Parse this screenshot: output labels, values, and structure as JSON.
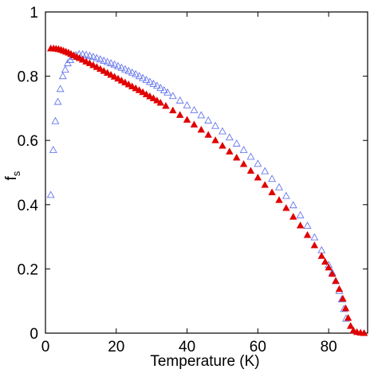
{
  "chart_data": {
    "type": "scatter",
    "xlabel": "Temperature (K)",
    "ylabel": {
      "main": "f",
      "subscript": "s"
    },
    "xlim": [
      0,
      91
    ],
    "ylim": [
      0,
      1
    ],
    "xticks": [
      "0",
      "20",
      "40",
      "60",
      "80"
    ],
    "xtick_values": [
      0,
      20,
      40,
      60,
      80
    ],
    "yticks": [
      "0",
      "0.2",
      "0.4",
      "0.6",
      "0.8",
      "1"
    ],
    "ytick_values": [
      0,
      0.2,
      0.4,
      0.6,
      0.8,
      1
    ],
    "grid": false,
    "series": [
      {
        "marker": "triangle-open",
        "color": "#6677ee",
        "points": [
          [
            1.5,
            0.43
          ],
          [
            2.2,
            0.57
          ],
          [
            2.8,
            0.66
          ],
          [
            3.5,
            0.72
          ],
          [
            4.2,
            0.76
          ],
          [
            4.9,
            0.8
          ],
          [
            5.6,
            0.82
          ],
          [
            6.3,
            0.84
          ],
          [
            7.0,
            0.85
          ],
          [
            7.8,
            0.86
          ],
          [
            8.6,
            0.865
          ],
          [
            9.5,
            0.868
          ],
          [
            10.5,
            0.868
          ],
          [
            11.5,
            0.866
          ],
          [
            12.5,
            0.863
          ],
          [
            13.5,
            0.86
          ],
          [
            14.5,
            0.856
          ],
          [
            15.5,
            0.852
          ],
          [
            16.5,
            0.848
          ],
          [
            17.5,
            0.844
          ],
          [
            18.5,
            0.84
          ],
          [
            19.5,
            0.836
          ],
          [
            20.5,
            0.831
          ],
          [
            21.5,
            0.826
          ],
          [
            22.5,
            0.821
          ],
          [
            23.5,
            0.816
          ],
          [
            24.5,
            0.811
          ],
          [
            25.5,
            0.806
          ],
          [
            26.5,
            0.8
          ],
          [
            27.5,
            0.794
          ],
          [
            28.5,
            0.788
          ],
          [
            29.5,
            0.782
          ],
          [
            30.5,
            0.776
          ],
          [
            31.5,
            0.77
          ],
          [
            32.5,
            0.763
          ],
          [
            33.5,
            0.756
          ],
          [
            34.5,
            0.749
          ],
          [
            36.0,
            0.738
          ],
          [
            38.0,
            0.724
          ],
          [
            40.0,
            0.709
          ],
          [
            42.0,
            0.694
          ],
          [
            44.0,
            0.678
          ],
          [
            46.0,
            0.662
          ],
          [
            48.0,
            0.645
          ],
          [
            50.0,
            0.628
          ],
          [
            52.0,
            0.609
          ],
          [
            54.0,
            0.59
          ],
          [
            56.0,
            0.57
          ],
          [
            58.0,
            0.549
          ],
          [
            60.0,
            0.527
          ],
          [
            62.0,
            0.504
          ],
          [
            64.0,
            0.48
          ],
          [
            66.0,
            0.454
          ],
          [
            68.0,
            0.427
          ],
          [
            70.0,
            0.398
          ],
          [
            72.0,
            0.367
          ],
          [
            74.0,
            0.334
          ],
          [
            76.0,
            0.298
          ],
          [
            78.0,
            0.258
          ],
          [
            80.0,
            0.212
          ],
          [
            81.0,
            0.188
          ],
          [
            82.0,
            0.162
          ],
          [
            83.0,
            0.131
          ],
          [
            83.7,
            0.105
          ],
          [
            84.3,
            0.075
          ],
          [
            84.9,
            0.045
          ]
        ]
      },
      {
        "marker": "triangle-filled",
        "color": "#e00000",
        "points": [
          [
            1.5,
            0.886
          ],
          [
            2.3,
            0.886
          ],
          [
            3.0,
            0.885
          ],
          [
            3.7,
            0.884
          ],
          [
            4.4,
            0.882
          ],
          [
            5.1,
            0.879
          ],
          [
            5.8,
            0.876
          ],
          [
            6.5,
            0.873
          ],
          [
            7.2,
            0.869
          ],
          [
            8.0,
            0.865
          ],
          [
            8.8,
            0.86
          ],
          [
            9.6,
            0.856
          ],
          [
            10.5,
            0.851
          ],
          [
            11.5,
            0.845
          ],
          [
            12.5,
            0.84
          ],
          [
            13.5,
            0.834
          ],
          [
            14.5,
            0.828
          ],
          [
            15.5,
            0.822
          ],
          [
            16.5,
            0.816
          ],
          [
            17.5,
            0.81
          ],
          [
            18.5,
            0.804
          ],
          [
            19.5,
            0.798
          ],
          [
            20.5,
            0.792
          ],
          [
            21.5,
            0.786
          ],
          [
            22.5,
            0.78
          ],
          [
            23.5,
            0.774
          ],
          [
            24.5,
            0.768
          ],
          [
            25.5,
            0.762
          ],
          [
            26.5,
            0.756
          ],
          [
            27.5,
            0.75
          ],
          [
            28.5,
            0.743
          ],
          [
            29.5,
            0.737
          ],
          [
            30.5,
            0.731
          ],
          [
            31.5,
            0.724
          ],
          [
            32.5,
            0.717
          ],
          [
            34.0,
            0.707
          ],
          [
            36.0,
            0.693
          ],
          [
            38.0,
            0.679
          ],
          [
            40.0,
            0.664
          ],
          [
            42.0,
            0.649
          ],
          [
            44.0,
            0.633
          ],
          [
            46.0,
            0.617
          ],
          [
            48.0,
            0.6
          ],
          [
            50.0,
            0.583
          ],
          [
            52.0,
            0.565
          ],
          [
            54.0,
            0.546
          ],
          [
            56.0,
            0.526
          ],
          [
            58.0,
            0.505
          ],
          [
            60.0,
            0.484
          ],
          [
            62.0,
            0.461
          ],
          [
            64.0,
            0.438
          ],
          [
            66.0,
            0.414
          ],
          [
            68.0,
            0.389
          ],
          [
            70.0,
            0.362
          ],
          [
            72.0,
            0.335
          ],
          [
            74.0,
            0.305
          ],
          [
            76.0,
            0.273
          ],
          [
            78.0,
            0.24
          ],
          [
            79.0,
            0.222
          ],
          [
            80.0,
            0.204
          ],
          [
            81.0,
            0.184
          ],
          [
            82.0,
            0.162
          ],
          [
            83.0,
            0.137
          ],
          [
            84.0,
            0.107
          ],
          [
            84.8,
            0.077
          ],
          [
            85.5,
            0.047
          ],
          [
            86.2,
            0.022
          ],
          [
            87.0,
            0.008
          ],
          [
            88.0,
            0.003
          ],
          [
            89.0,
            0.001
          ],
          [
            90.0,
            0.0
          ]
        ]
      }
    ]
  }
}
